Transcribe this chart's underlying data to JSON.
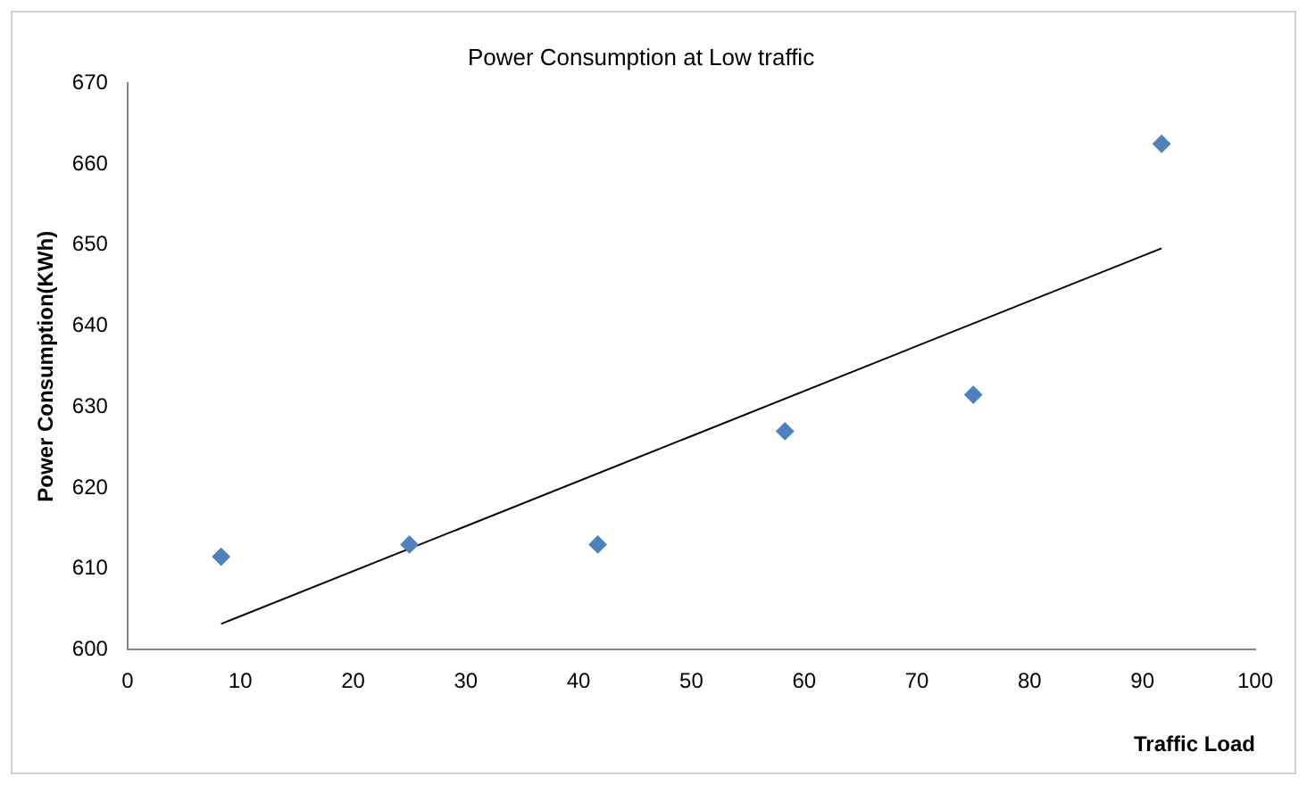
{
  "chart_data": {
    "type": "scatter",
    "title": "Power Consumption at Low traffic",
    "xlabel": "Traffic Load",
    "ylabel": "Power Consumption(KWh)",
    "xlim": [
      0,
      100
    ],
    "xticks": [
      0,
      10,
      20,
      30,
      40,
      50,
      60,
      70,
      80,
      90,
      100
    ],
    "ylim": [
      600,
      670
    ],
    "yticks": [
      600,
      610,
      620,
      630,
      640,
      650,
      660,
      670
    ],
    "grid": false,
    "legend": false,
    "marker": "diamond",
    "series": [
      {
        "color": "#4f81bd",
        "x": [
          8.3,
          25,
          41.7,
          58.3,
          75,
          91.7
        ],
        "values": [
          611.5,
          613,
          613,
          627,
          631.5,
          662.5
        ]
      },
      {
        "type": "line",
        "color": "#000000",
        "marker": "none",
        "line_style": "solid",
        "x": [
          8.3,
          91.7
        ],
        "values": [
          603.2,
          649.6
        ]
      }
    ]
  }
}
